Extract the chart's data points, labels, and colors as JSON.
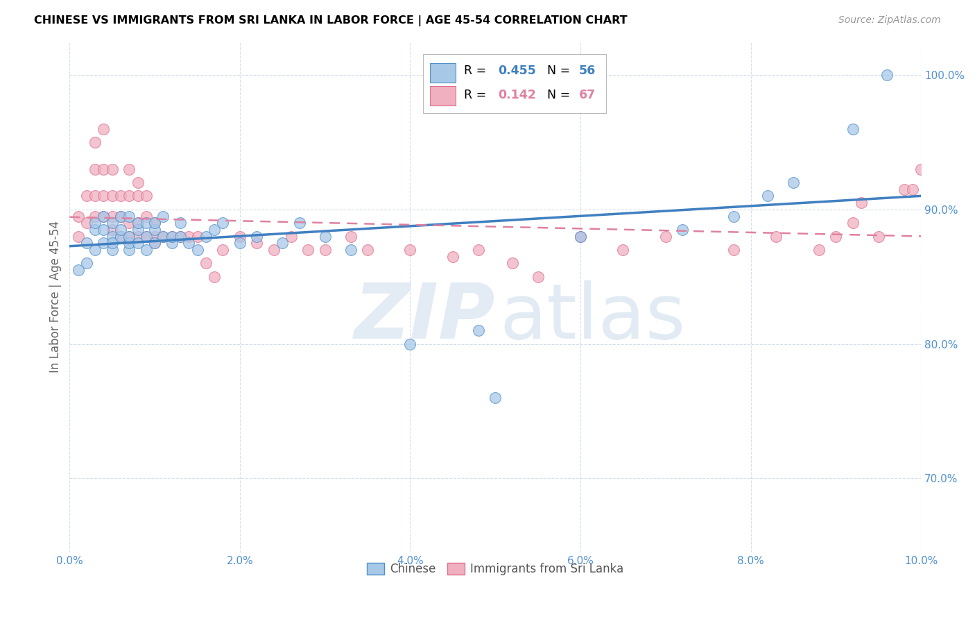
{
  "title": "CHINESE VS IMMIGRANTS FROM SRI LANKA IN LABOR FORCE | AGE 45-54 CORRELATION CHART",
  "source": "Source: ZipAtlas.com",
  "ylabel": "In Labor Force | Age 45-54",
  "xlim": [
    0.0,
    0.1
  ],
  "ylim": [
    0.645,
    1.025
  ],
  "xticks": [
    0.0,
    0.02,
    0.04,
    0.06,
    0.08,
    0.1
  ],
  "xticklabels": [
    "0.0%",
    "2.0%",
    "4.0%",
    "6.0%",
    "8.0%",
    "10.0%"
  ],
  "yticks": [
    0.7,
    0.8,
    0.9,
    1.0
  ],
  "yticklabels": [
    "70.0%",
    "80.0%",
    "90.0%",
    "100.0%"
  ],
  "blue_color": "#a8c8e8",
  "pink_color": "#f0b0c0",
  "blue_edge_color": "#5090c8",
  "pink_edge_color": "#e07090",
  "blue_line_color": "#4080c0",
  "pink_line_color": "#e080a0",
  "tick_color": "#5090d0",
  "grid_color": "#c8d8e8",
  "legend_R_blue": "0.455",
  "legend_N_blue": "56",
  "legend_R_pink": "0.142",
  "legend_N_pink": "67",
  "blue_scatter_x": [
    0.001,
    0.002,
    0.002,
    0.003,
    0.003,
    0.003,
    0.004,
    0.004,
    0.004,
    0.005,
    0.005,
    0.005,
    0.005,
    0.006,
    0.006,
    0.006,
    0.007,
    0.007,
    0.007,
    0.007,
    0.008,
    0.008,
    0.008,
    0.009,
    0.009,
    0.009,
    0.01,
    0.01,
    0.01,
    0.011,
    0.011,
    0.012,
    0.012,
    0.013,
    0.013,
    0.014,
    0.015,
    0.016,
    0.017,
    0.018,
    0.02,
    0.022,
    0.025,
    0.027,
    0.03,
    0.033,
    0.04,
    0.048,
    0.06,
    0.072,
    0.05,
    0.082,
    0.078,
    0.085,
    0.092,
    0.096
  ],
  "blue_scatter_y": [
    0.855,
    0.86,
    0.875,
    0.87,
    0.885,
    0.89,
    0.875,
    0.885,
    0.895,
    0.87,
    0.88,
    0.875,
    0.89,
    0.88,
    0.885,
    0.895,
    0.87,
    0.875,
    0.88,
    0.895,
    0.875,
    0.885,
    0.89,
    0.87,
    0.88,
    0.89,
    0.875,
    0.885,
    0.89,
    0.88,
    0.895,
    0.875,
    0.88,
    0.88,
    0.89,
    0.875,
    0.87,
    0.88,
    0.885,
    0.89,
    0.875,
    0.88,
    0.875,
    0.89,
    0.88,
    0.87,
    0.8,
    0.81,
    0.88,
    0.885,
    0.76,
    0.91,
    0.895,
    0.92,
    0.96,
    1.0
  ],
  "pink_scatter_x": [
    0.001,
    0.001,
    0.002,
    0.002,
    0.003,
    0.003,
    0.003,
    0.003,
    0.004,
    0.004,
    0.004,
    0.004,
    0.005,
    0.005,
    0.005,
    0.005,
    0.006,
    0.006,
    0.006,
    0.007,
    0.007,
    0.007,
    0.007,
    0.008,
    0.008,
    0.008,
    0.008,
    0.009,
    0.009,
    0.009,
    0.01,
    0.01,
    0.01,
    0.011,
    0.012,
    0.013,
    0.014,
    0.015,
    0.016,
    0.017,
    0.018,
    0.02,
    0.022,
    0.024,
    0.026,
    0.028,
    0.03,
    0.033,
    0.035,
    0.04,
    0.045,
    0.048,
    0.052,
    0.055,
    0.06,
    0.065,
    0.07,
    0.078,
    0.083,
    0.088,
    0.09,
    0.092,
    0.093,
    0.095,
    0.098,
    0.099,
    0.1
  ],
  "pink_scatter_y": [
    0.88,
    0.895,
    0.89,
    0.91,
    0.895,
    0.91,
    0.93,
    0.95,
    0.895,
    0.91,
    0.93,
    0.96,
    0.885,
    0.895,
    0.91,
    0.93,
    0.88,
    0.895,
    0.91,
    0.88,
    0.89,
    0.91,
    0.93,
    0.88,
    0.89,
    0.91,
    0.92,
    0.88,
    0.895,
    0.91,
    0.875,
    0.88,
    0.89,
    0.88,
    0.88,
    0.88,
    0.88,
    0.88,
    0.86,
    0.85,
    0.87,
    0.88,
    0.875,
    0.87,
    0.88,
    0.87,
    0.87,
    0.88,
    0.87,
    0.87,
    0.865,
    0.87,
    0.86,
    0.85,
    0.88,
    0.87,
    0.88,
    0.87,
    0.88,
    0.87,
    0.88,
    0.89,
    0.905,
    0.88,
    0.915,
    0.915,
    0.93
  ]
}
